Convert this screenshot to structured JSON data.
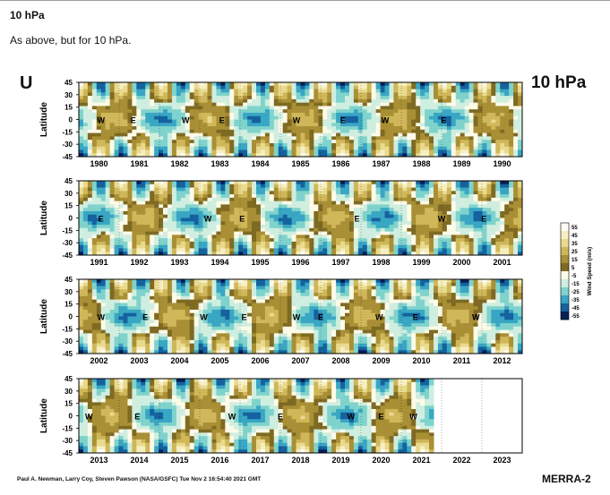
{
  "section": {
    "title": "10 hPa",
    "description": "As above, but for 10 hPa."
  },
  "figure": {
    "variable_label": "U",
    "level_label": "10 hPa",
    "credit": "Paul A. Newman, Larry Coy, Steven Pawson (NASA/GSFC) Tue Nov  2 16:54:40 2021 GMT",
    "brand": "MERRA-2",
    "colorbar_label": "Wind Speed (m/s)"
  },
  "chart_data": {
    "type": "heatmap",
    "title": "U",
    "ylabel": "Latitude",
    "yticks": [
      45,
      30,
      15,
      0,
      -15,
      -30,
      -45
    ],
    "ylim": [
      -45,
      45
    ],
    "colorbar": {
      "label": "Wind Speed (m/s)",
      "ticks": [
        55,
        45,
        35,
        25,
        15,
        5,
        -5,
        -15,
        -25,
        -35,
        -45,
        -55
      ],
      "colors": [
        "#fffef5",
        "#f7efc2",
        "#e9da8e",
        "#cfb75a",
        "#a98f35",
        "#7e6a22",
        "#fdfae8",
        "#cfeee0",
        "#7fd3cc",
        "#39a6c4",
        "#15629e",
        "#061f55"
      ]
    },
    "annotations": [
      "W",
      "E"
    ],
    "panels": [
      {
        "years": [
          "1980",
          "1981",
          "1982",
          "1983",
          "1984",
          "1985",
          "1986",
          "1987",
          "1988",
          "1989",
          "1990"
        ],
        "xlim": [
          "1980-01",
          "1990-12"
        ],
        "qbo_labels": [
          {
            "text": "W",
            "year": 1980.55
          },
          {
            "text": "E",
            "year": 1981.35
          },
          {
            "text": "W",
            "year": 1982.65
          },
          {
            "text": "E",
            "year": 1983.55
          },
          {
            "text": "W",
            "year": 1985.4
          },
          {
            "text": "E",
            "year": 1986.55
          },
          {
            "text": "W",
            "year": 1987.6
          },
          {
            "text": "E",
            "year": 1989.05
          }
        ]
      },
      {
        "years": [
          "1991",
          "1992",
          "1993",
          "1994",
          "1995",
          "1996",
          "1997",
          "1998",
          "1999",
          "2000",
          "2001"
        ],
        "xlim": [
          "1991-01",
          "2001-12"
        ],
        "qbo_labels": [
          {
            "text": "E",
            "year": 1991.55
          },
          {
            "text": "W",
            "year": 1994.2
          },
          {
            "text": "E",
            "year": 1995.05
          },
          {
            "text": "E",
            "year": 1997.9
          },
          {
            "text": "W",
            "year": 2000.0
          },
          {
            "text": "E",
            "year": 2001.05
          }
        ]
      },
      {
        "years": [
          "2002",
          "2003",
          "2004",
          "2005",
          "2006",
          "2007",
          "2008",
          "2009",
          "2010",
          "2011",
          "2012"
        ],
        "xlim": [
          "2002-01",
          "2012-12"
        ],
        "qbo_labels": [
          {
            "text": "W",
            "year": 2002.55
          },
          {
            "text": "E",
            "year": 2003.65
          },
          {
            "text": "W",
            "year": 2005.1
          },
          {
            "text": "E",
            "year": 2006.1
          },
          {
            "text": "W",
            "year": 2007.4
          },
          {
            "text": "E",
            "year": 2008.0
          },
          {
            "text": "W",
            "year": 2009.45
          },
          {
            "text": "E",
            "year": 2010.35
          },
          {
            "text": "W",
            "year": 2011.85
          }
        ]
      },
      {
        "years": [
          "2013",
          "2014",
          "2015",
          "2016",
          "2017",
          "2018",
          "2019",
          "2020",
          "2021",
          "2022",
          "2023"
        ],
        "xlim": [
          "2013-01",
          "2023-12"
        ],
        "qbo_labels": [
          {
            "text": "W",
            "year": 2013.25
          },
          {
            "text": "E",
            "year": 2014.45
          },
          {
            "text": "W",
            "year": 2016.8
          },
          {
            "text": "E",
            "year": 2018.0
          },
          {
            "text": "W",
            "year": 2019.75
          },
          {
            "text": "E",
            "year": 2020.5
          },
          {
            "text": "W",
            "year": 2021.3
          }
        ]
      }
    ],
    "data_end": "2021-10"
  }
}
